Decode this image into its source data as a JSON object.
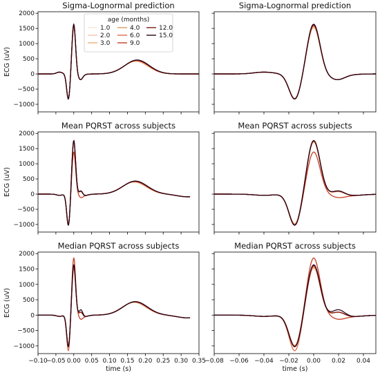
{
  "chart_data": {
    "type": "line",
    "ages": [
      "1.0",
      "2.0",
      "3.0",
      "4.0",
      "6.0",
      "9.0",
      "12.0",
      "15.0"
    ],
    "colors": [
      "#fbe3dc",
      "#f7c2ad",
      "#edae79",
      "#d79a5e",
      "#e2684d",
      "#c43b23",
      "#7a1a12",
      "#2a0416"
    ],
    "legend": {
      "title": "age (months)",
      "placement": "top-center",
      "ncols": 3
    },
    "panels": [
      {
        "id": "p11",
        "title": "Sigma-Lognormal prediction",
        "kind": "pred",
        "xlim": [
          -0.1,
          0.35
        ],
        "ylim": [
          -1250,
          2050
        ],
        "ylabel": "ECG (uV)",
        "yticks": [
          "2000",
          "1500",
          "1000",
          "500",
          "0",
          "−500",
          "−1000"
        ],
        "show_legend": true
      },
      {
        "id": "p12",
        "title": "Sigma-Lognormal prediction",
        "kind": "pred",
        "xlim": [
          -0.08,
          0.05
        ],
        "ylim": [
          -1250,
          2050
        ]
      },
      {
        "id": "p21",
        "title": "Mean PQRST across subjects",
        "kind": "mean",
        "xlim": [
          -0.1,
          0.35
        ],
        "ylim": [
          -1250,
          2050
        ],
        "ylabel": "ECG (uV)",
        "yticks": [
          "2000",
          "1500",
          "1000",
          "500",
          "0",
          "−500",
          "−1000"
        ]
      },
      {
        "id": "p22",
        "title": "Mean PQRST across subjects",
        "kind": "mean",
        "xlim": [
          -0.08,
          0.05
        ],
        "ylim": [
          -1250,
          2050
        ]
      },
      {
        "id": "p31",
        "title": "Median PQRST across subjects",
        "kind": "median",
        "xlim": [
          -0.1,
          0.35
        ],
        "ylim": [
          -1250,
          2050
        ],
        "ylabel": "ECG (uV)",
        "yticks": [
          "2000",
          "1500",
          "1000",
          "500",
          "0",
          "−500",
          "−1000"
        ],
        "xlabel": "time (s)",
        "xticks": [
          "−0.10",
          "−0.05",
          "0.00",
          "0.05",
          "0.10",
          "0.15",
          "0.20",
          "0.25",
          "0.30",
          "0.35"
        ]
      },
      {
        "id": "p32",
        "title": "Median PQRST across subjects",
        "kind": "median",
        "xlim": [
          -0.08,
          0.05
        ],
        "ylim": [
          -1250,
          2050
        ],
        "xlabel": "time (s)",
        "xticks": [
          "−0.08",
          "−0.06",
          "−0.04",
          "−0.02",
          "0.00",
          "0.02",
          "0.04"
        ]
      }
    ],
    "shape": {
      "pred": {
        "x_end": 0.35,
        "p_amp": 60,
        "q_amp": -820,
        "r_amp": 1680,
        "s_amp": -90,
        "t_amp": 450,
        "t_center": 0.175
      },
      "mean": {
        "x_end": 0.325,
        "p_amp": -40,
        "q_amp": -1050,
        "r_amp": 1780,
        "s_amp": 130,
        "t_amp": 430,
        "t_center": 0.17
      },
      "median": {
        "x_end": 0.325,
        "p_amp": -40,
        "q_amp": -1050,
        "r_amp": 1650,
        "s_amp": 150,
        "t_amp": 440,
        "t_center": 0.17
      }
    }
  }
}
